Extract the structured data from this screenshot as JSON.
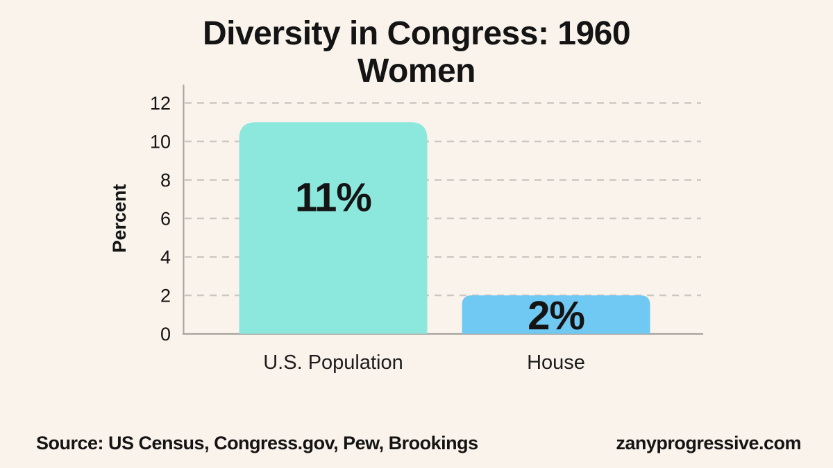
{
  "title": {
    "line1": "Diversity in Congress: 1960",
    "line2": "Women"
  },
  "footer": {
    "source": "Source: US Census, Congress.gov, Pew, Brookings",
    "website": "zanyprogressive.com"
  },
  "colors": {
    "background": "#faf3ec",
    "bar_teal": "#8ce7dd",
    "bar_blue": "#70c9f3",
    "grid": "#ccc7c2",
    "axis": "#a8a39e",
    "text": "#141414"
  },
  "chart_data": {
    "type": "bar",
    "title": "Diversity in Congress: 1960 Women",
    "categories": [
      "U.S. Population",
      "House"
    ],
    "values": [
      11,
      2
    ],
    "value_labels": [
      "11%",
      "2%"
    ],
    "bar_colors": [
      "#8ce7dd",
      "#70c9f3"
    ],
    "xlabel": "",
    "ylabel": "Percent",
    "yticks": [
      0,
      2,
      4,
      6,
      8,
      10,
      12
    ],
    "ylim": [
      0,
      12
    ],
    "grid": "horizontal-dashed",
    "legend": "none"
  }
}
